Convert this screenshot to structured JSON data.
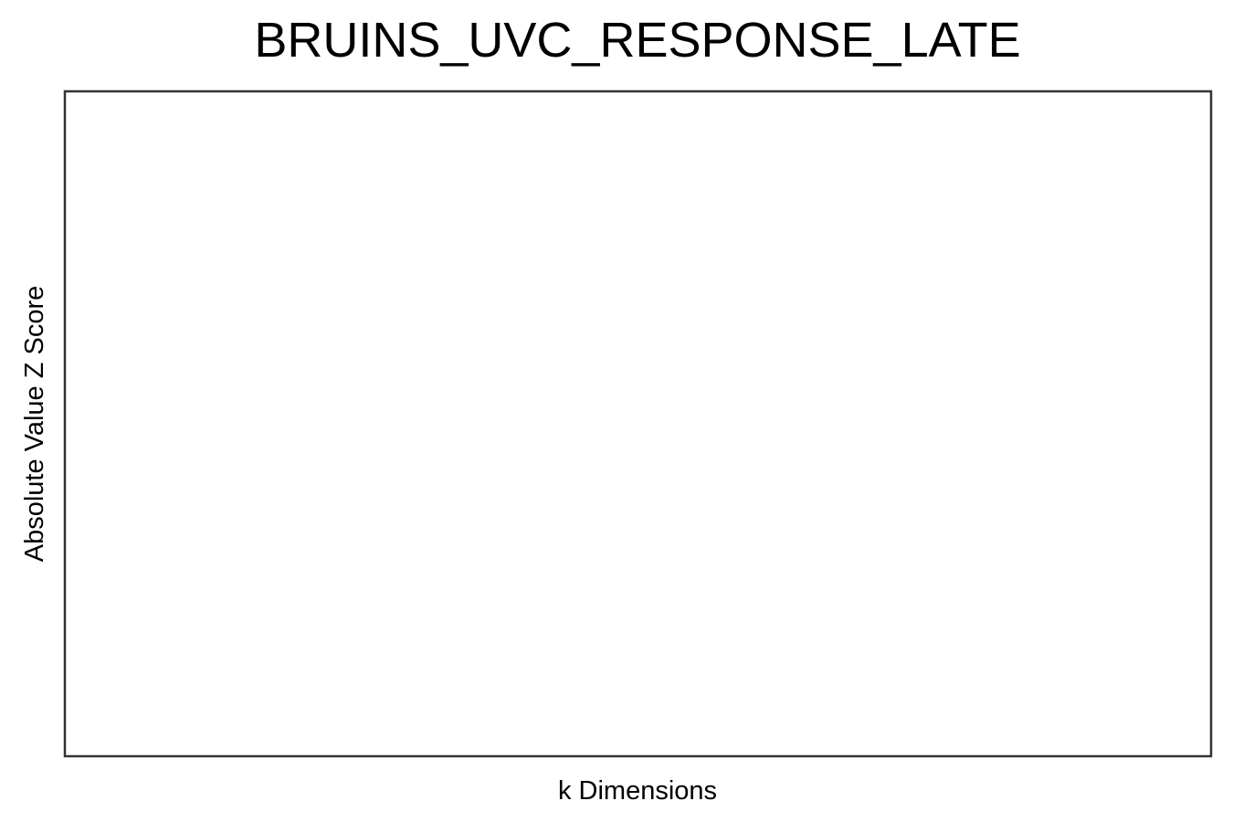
{
  "chart_data": {
    "type": "line",
    "title": "BRUINS_UVC_RESPONSE_LATE",
    "xlabel": "k Dimensions",
    "ylabel": "Absolute Value Z Score",
    "series": [],
    "grid": false,
    "legend": "none"
  },
  "colors": {
    "background": "#ffffff",
    "frame": "#333333",
    "text": "#000000"
  }
}
